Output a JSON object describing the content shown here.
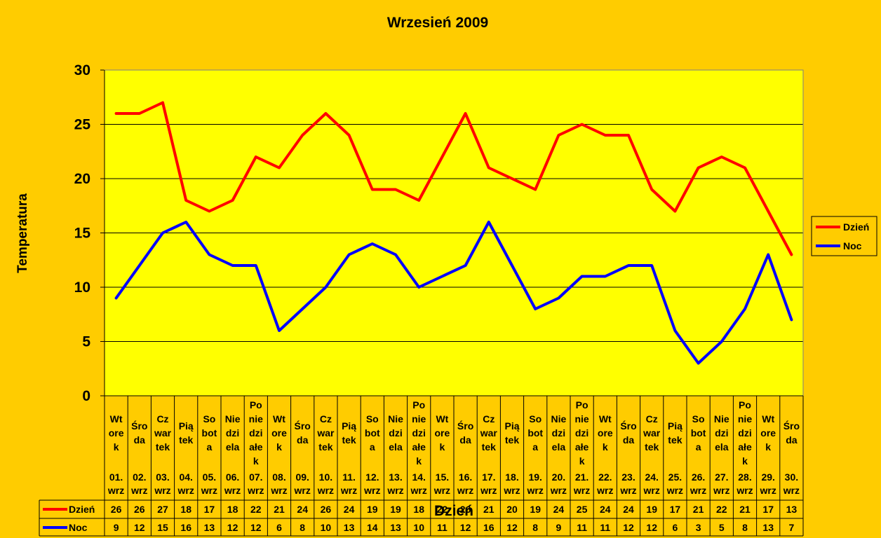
{
  "chart_data": {
    "type": "line",
    "title": "Wrzesień 2009",
    "xlabel": "Dzień",
    "ylabel": "Temperatura",
    "ylim": [
      0,
      30
    ],
    "yticks": [
      0,
      5,
      10,
      15,
      20,
      25,
      30
    ],
    "grid": true,
    "legend": "right",
    "data_table": true,
    "categories": [
      {
        "day": [
          "Wt",
          "ore",
          "k"
        ],
        "date": [
          "01.",
          "wrz"
        ]
      },
      {
        "day": [
          "Śro",
          "da"
        ],
        "date": [
          "02.",
          "wrz"
        ]
      },
      {
        "day": [
          "Cz",
          "war",
          "tek"
        ],
        "date": [
          "03.",
          "wrz"
        ]
      },
      {
        "day": [
          "Pią",
          "tek"
        ],
        "date": [
          "04.",
          "wrz"
        ]
      },
      {
        "day": [
          "So",
          "bot",
          "a"
        ],
        "date": [
          "05.",
          "wrz"
        ]
      },
      {
        "day": [
          "Nie",
          "dzi",
          "ela"
        ],
        "date": [
          "06.",
          "wrz"
        ]
      },
      {
        "day": [
          "Po",
          "nie",
          "dzi",
          "ałe",
          "k"
        ],
        "date": [
          "07.",
          "wrz"
        ]
      },
      {
        "day": [
          "Wt",
          "ore",
          "k"
        ],
        "date": [
          "08.",
          "wrz"
        ]
      },
      {
        "day": [
          "Śro",
          "da"
        ],
        "date": [
          "09.",
          "wrz"
        ]
      },
      {
        "day": [
          "Cz",
          "war",
          "tek"
        ],
        "date": [
          "10.",
          "wrz"
        ]
      },
      {
        "day": [
          "Pią",
          "tek"
        ],
        "date": [
          "11.",
          "wrz"
        ]
      },
      {
        "day": [
          "So",
          "bot",
          "a"
        ],
        "date": [
          "12.",
          "wrz"
        ]
      },
      {
        "day": [
          "Nie",
          "dzi",
          "ela"
        ],
        "date": [
          "13.",
          "wrz"
        ]
      },
      {
        "day": [
          "Po",
          "nie",
          "dzi",
          "ałe",
          "k"
        ],
        "date": [
          "14.",
          "wrz"
        ]
      },
      {
        "day": [
          "Wt",
          "ore",
          "k"
        ],
        "date": [
          "15.",
          "wrz"
        ]
      },
      {
        "day": [
          "Śro",
          "da"
        ],
        "date": [
          "16.",
          "wrz"
        ]
      },
      {
        "day": [
          "Cz",
          "war",
          "tek"
        ],
        "date": [
          "17.",
          "wrz"
        ]
      },
      {
        "day": [
          "Pią",
          "tek"
        ],
        "date": [
          "18.",
          "wrz"
        ]
      },
      {
        "day": [
          "So",
          "bot",
          "a"
        ],
        "date": [
          "19.",
          "wrz"
        ]
      },
      {
        "day": [
          "Nie",
          "dzi",
          "ela"
        ],
        "date": [
          "20.",
          "wrz"
        ]
      },
      {
        "day": [
          "Po",
          "nie",
          "dzi",
          "ałe",
          "k"
        ],
        "date": [
          "21.",
          "wrz"
        ]
      },
      {
        "day": [
          "Wt",
          "ore",
          "k"
        ],
        "date": [
          "22.",
          "wrz"
        ]
      },
      {
        "day": [
          "Śro",
          "da"
        ],
        "date": [
          "23.",
          "wrz"
        ]
      },
      {
        "day": [
          "Cz",
          "war",
          "tek"
        ],
        "date": [
          "24.",
          "wrz"
        ]
      },
      {
        "day": [
          "Pią",
          "tek"
        ],
        "date": [
          "25.",
          "wrz"
        ]
      },
      {
        "day": [
          "So",
          "bot",
          "a"
        ],
        "date": [
          "26.",
          "wrz"
        ]
      },
      {
        "day": [
          "Nie",
          "dzi",
          "ela"
        ],
        "date": [
          "27.",
          "wrz"
        ]
      },
      {
        "day": [
          "Po",
          "nie",
          "dzi",
          "ałe",
          "k"
        ],
        "date": [
          "28.",
          "wrz"
        ]
      },
      {
        "day": [
          "Wt",
          "ore",
          "k"
        ],
        "date": [
          "29.",
          "wrz"
        ]
      },
      {
        "day": [
          "Śro",
          "da"
        ],
        "date": [
          "30.",
          "wrz"
        ]
      }
    ],
    "series": [
      {
        "name": "Dzień",
        "color": "#FF0000",
        "values": [
          26,
          26,
          27,
          18,
          17,
          18,
          22,
          21,
          24,
          26,
          24,
          19,
          19,
          18,
          22,
          26,
          21,
          20,
          19,
          24,
          25,
          24,
          24,
          19,
          17,
          21,
          22,
          21,
          17,
          13
        ]
      },
      {
        "name": "Noc",
        "color": "#0000FF",
        "values": [
          9,
          12,
          15,
          16,
          13,
          12,
          12,
          6,
          8,
          10,
          13,
          14,
          13,
          10,
          11,
          12,
          16,
          12,
          8,
          9,
          11,
          11,
          12,
          12,
          6,
          3,
          5,
          8,
          13,
          7
        ]
      }
    ],
    "colors": {
      "background": "#FFCC00",
      "plot_area": "#FFFF00",
      "grid": "#000000"
    }
  }
}
